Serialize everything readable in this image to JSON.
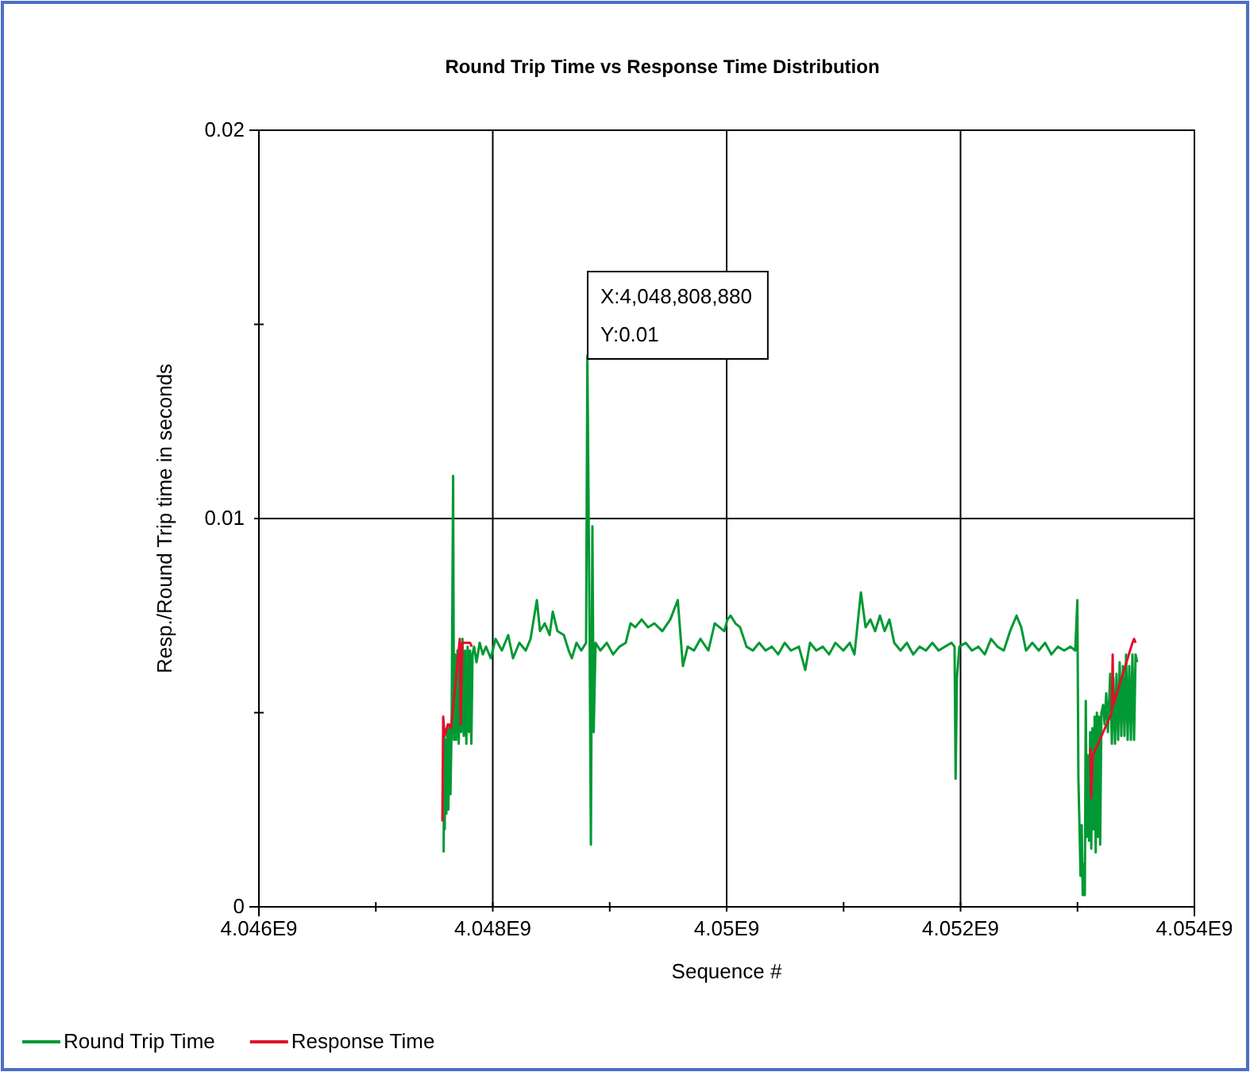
{
  "chart_data": {
    "type": "line",
    "title": "Round Trip Time vs Response Time Distribution",
    "xlabel": "Sequence #",
    "ylabel": "Resp./Round Trip time in seconds",
    "xlim": [
      4046000000,
      4054000000
    ],
    "xticks": [
      {
        "value": 4046000000,
        "label": "4.046E9"
      },
      {
        "value": 4047000000,
        "label": null
      },
      {
        "value": 4048000000,
        "label": "4.048E9"
      },
      {
        "value": 4049000000,
        "label": null
      },
      {
        "value": 4050000000,
        "label": "4.05E9"
      },
      {
        "value": 4051000000,
        "label": null
      },
      {
        "value": 4052000000,
        "label": "4.052E9"
      },
      {
        "value": 4053000000,
        "label": null
      },
      {
        "value": 4054000000,
        "label": "4.054E9"
      }
    ],
    "ylim": [
      0,
      0.02
    ],
    "yticks": [
      0,
      {
        "value": 0.005,
        "label": null
      },
      0.01,
      {
        "value": 0.015,
        "label": null
      },
      0.02
    ],
    "grid": true,
    "legend": "bottom left",
    "annotations": [
      "X:4,048,808,880\nY:0.01"
    ],
    "series": [
      {
        "name": "Round Trip Time",
        "color": "#009933",
        "x": [
          4047580000,
          4047584000,
          4047589000,
          4047596000,
          4047603000,
          4047611000,
          4047620000,
          4047630000,
          4047638000,
          4047648000,
          4047661000,
          4047668000,
          4047677000,
          4047687000,
          4047698000,
          4047709000,
          4047720000,
          4047730000,
          4047741000,
          4047752000,
          4047763000,
          4047774000,
          4047785000,
          4047796000,
          4047806000,
          4047817000,
          4047827000,
          4047840000,
          4047861000,
          4047888000,
          4047915000,
          4047942000,
          4047983000,
          4048024000,
          4048078000,
          4048132000,
          4048173000,
          4048227000,
          4048282000,
          4048323000,
          4048377000,
          4048404000,
          4048445000,
          4048486000,
          4048513000,
          4048553000,
          4048608000,
          4048649000,
          4048676000,
          4048716000,
          4048757000,
          4048798000,
          4048809000,
          4048828000,
          4048839000,
          4048852000,
          4048863000,
          4048879000,
          4048920000,
          4048975000,
          4049029000,
          4049083000,
          4049137000,
          4049178000,
          4049219000,
          4049273000,
          4049328000,
          4049382000,
          4049450000,
          4049518000,
          4049582000,
          4049626000,
          4049667000,
          4049721000,
          4049776000,
          4049844000,
          4049898000,
          4049939000,
          4049980000,
          4050007000,
          4050034000,
          4050075000,
          4050115000,
          4050170000,
          4050224000,
          4050278000,
          4050333000,
          4050387000,
          4050441000,
          4050496000,
          4050550000,
          4050618000,
          4050672000,
          4050713000,
          4050767000,
          4050822000,
          4050876000,
          4050930000,
          4050998000,
          4051053000,
          4051093000,
          4051148000,
          4051188000,
          4051229000,
          4051270000,
          4051311000,
          4051351000,
          4051392000,
          4051433000,
          4051487000,
          4051541000,
          4051596000,
          4051650000,
          4051704000,
          4051759000,
          4051813000,
          4051867000,
          4051922000,
          4051949000,
          4051958000,
          4051969000,
          4051990000,
          4052044000,
          4052098000,
          4052153000,
          4052207000,
          4052261000,
          4052316000,
          4052370000,
          4052424000,
          4052479000,
          4052519000,
          4052560000,
          4052614000,
          4052669000,
          4052723000,
          4052777000,
          4052832000,
          4052886000,
          4052940000,
          4052981000,
          4052999000,
          4053008000,
          4053018000,
          4053026000,
          4053036000,
          4053045000,
          4053053000,
          4053063000,
          4053071000,
          4053080000,
          4053090000,
          4053099000,
          4053109000,
          4053118000,
          4053128000,
          4053137000,
          4053147000,
          4053156000,
          4053166000,
          4053175000,
          4053185000,
          4053194000,
          4053205000,
          4053219000,
          4053232000,
          4053246000,
          4053260000,
          4053280000,
          4053294000,
          4053307000,
          4053321000,
          4053334000,
          4053348000,
          4053361000,
          4053375000,
          4053389000,
          4053402000,
          4053416000,
          4053429000,
          4053443000,
          4053457000,
          4053470000,
          4053484000,
          4053497000,
          4053511000
        ],
        "values": [
          0.0014,
          0.0045,
          0.002,
          0.0043,
          0.0024,
          0.0046,
          0.0025,
          0.0047,
          0.0029,
          0.0046,
          0.0111,
          0.0043,
          0.0065,
          0.0043,
          0.0066,
          0.0042,
          0.0067,
          0.0045,
          0.0069,
          0.0044,
          0.0066,
          0.0042,
          0.0067,
          0.0045,
          0.0066,
          0.0042,
          0.0065,
          0.0067,
          0.0063,
          0.0068,
          0.0065,
          0.0067,
          0.0064,
          0.0069,
          0.0066,
          0.007,
          0.0064,
          0.0068,
          0.0066,
          0.0069,
          0.0079,
          0.0071,
          0.0073,
          0.007,
          0.0076,
          0.0071,
          0.007,
          0.0066,
          0.0064,
          0.0068,
          0.0066,
          0.0068,
          0.0142,
          0.007,
          0.0016,
          0.0098,
          0.0045,
          0.0068,
          0.0066,
          0.0068,
          0.0065,
          0.0067,
          0.0068,
          0.0073,
          0.0072,
          0.0074,
          0.0072,
          0.0073,
          0.0071,
          0.0074,
          0.0079,
          0.0062,
          0.0067,
          0.0066,
          0.0069,
          0.0066,
          0.0073,
          0.0072,
          0.0071,
          0.0074,
          0.0075,
          0.0073,
          0.0072,
          0.0067,
          0.0066,
          0.0068,
          0.0066,
          0.0067,
          0.0065,
          0.0068,
          0.0066,
          0.0067,
          0.0061,
          0.0068,
          0.0066,
          0.0067,
          0.0065,
          0.0068,
          0.0066,
          0.0068,
          0.0065,
          0.0081,
          0.0072,
          0.0074,
          0.0071,
          0.0075,
          0.0071,
          0.0074,
          0.0068,
          0.0066,
          0.0068,
          0.0065,
          0.0067,
          0.0066,
          0.0068,
          0.0066,
          0.0067,
          0.0068,
          0.0067,
          0.0033,
          0.0059,
          0.0067,
          0.0068,
          0.0066,
          0.0067,
          0.0065,
          0.0069,
          0.0067,
          0.0066,
          0.0071,
          0.0075,
          0.0072,
          0.0066,
          0.0068,
          0.0066,
          0.0068,
          0.0065,
          0.0067,
          0.0066,
          0.0067,
          0.0066,
          0.0079,
          0.0033,
          0.002,
          0.0008,
          0.0021,
          0.0003,
          0.0011,
          0.0003,
          0.0053,
          0.0018,
          0.0039,
          0.0017,
          0.0045,
          0.0015,
          0.0046,
          0.002,
          0.0049,
          0.0014,
          0.005,
          0.0018,
          0.0049,
          0.0016,
          0.005,
          0.0052,
          0.0047,
          0.0055,
          0.0045,
          0.006,
          0.0042,
          0.0059,
          0.0042,
          0.006,
          0.0043,
          0.0063,
          0.0044,
          0.0062,
          0.0044,
          0.0065,
          0.0043,
          0.0062,
          0.0043,
          0.0065,
          0.0043,
          0.0065,
          0.0063
        ]
      },
      {
        "name": "Response Time",
        "color": "#e0102a",
        "x": [
          4047569000,
          4047576000,
          4047589000,
          4047616000,
          4047643000,
          4047718000,
          4047725000,
          4047739000,
          4047806000,
          4047820000,
          null,
          4053110000,
          4053117000,
          4053131000,
          4053294000,
          4053301000,
          4053307000,
          4053470000,
          4053484000,
          4053497000
        ],
        "values": [
          0.0022,
          0.0049,
          0.0044,
          0.0047,
          0.0046,
          0.0069,
          0.0047,
          0.0068,
          0.0068,
          0.0067,
          null,
          0.0041,
          0.0028,
          0.0039,
          0.005,
          0.0065,
          0.0052,
          0.0068,
          0.0069,
          0.0068
        ]
      }
    ]
  }
}
